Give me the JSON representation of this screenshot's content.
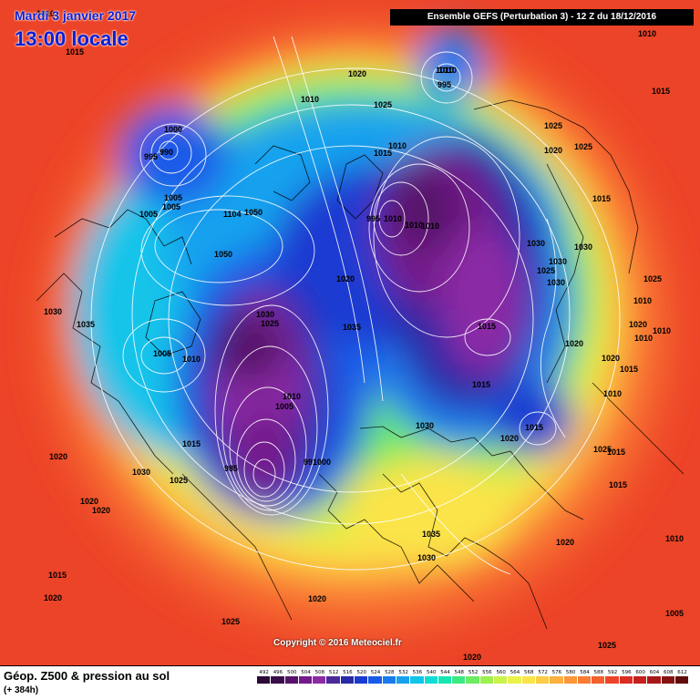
{
  "header": {
    "date": "Mardi 3 janvier 2017",
    "local_time": "13:00 locale",
    "run_info": "Ensemble GEFS  (Perturbation 3)  -  12 Z du 18/12/2016"
  },
  "copyright": "Copyright © 2016 Meteociel.fr",
  "footer": {
    "title": "Géop. Z500 & pression au sol",
    "subtitle": "(+ 384h)"
  },
  "legend": {
    "values": [
      "492",
      "496",
      "500",
      "504",
      "508",
      "512",
      "516",
      "520",
      "524",
      "528",
      "532",
      "536",
      "540",
      "544",
      "548",
      "552",
      "556",
      "560",
      "564",
      "568",
      "572",
      "576",
      "580",
      "584",
      "588",
      "592",
      "596",
      "600",
      "604",
      "608",
      "612"
    ],
    "colors": [
      "#2b0a36",
      "#3a0c4a",
      "#56126a",
      "#741a8c",
      "#8c2aa6",
      "#4a2a98",
      "#2a2aa6",
      "#1a3ad2",
      "#1a5ae8",
      "#1a7aee",
      "#14a2ee",
      "#12c4ea",
      "#12dcd4",
      "#16e6b0",
      "#3ce884",
      "#6cec62",
      "#9cf052",
      "#caf24a",
      "#ecf24a",
      "#fae44a",
      "#fccc44",
      "#fcb03e",
      "#fc9638",
      "#fa7c34",
      "#f4602e",
      "#ec4428",
      "#dc2c24",
      "#c4201e",
      "#a61818",
      "#861212",
      "#5e0c0c"
    ]
  },
  "pressure_labels": [
    "1010",
    "1015",
    "1020",
    "1025",
    "1010",
    "1010",
    "1010",
    "995",
    "1000",
    "990",
    "995",
    "1010",
    "1005",
    "1015",
    "1005",
    "1005",
    "1104",
    "1050",
    "1050",
    "1030",
    "1035",
    "1030",
    "1025",
    "1005",
    "1010",
    "1020",
    "1010",
    "1005",
    "1035",
    "1020",
    "1010",
    "1015",
    "1010",
    "1020",
    "1025",
    "1020",
    "1025",
    "1020",
    "1010",
    "995",
    "1010",
    "1010",
    "1030",
    "1030",
    "1025",
    "1030",
    "1025",
    "1015",
    "1015",
    "1025",
    "1030",
    "1010",
    "1015",
    "1015",
    "1020",
    "1010",
    "1020",
    "1015",
    "1020",
    "1015",
    "1025",
    "1015",
    "1010",
    "1030",
    "1020",
    "1020",
    "1020",
    "1030",
    "1025",
    "985",
    "991000",
    "1035",
    "1030",
    "1020",
    "1010",
    "1015",
    "1020",
    "1025",
    "1005",
    "1015"
  ]
}
